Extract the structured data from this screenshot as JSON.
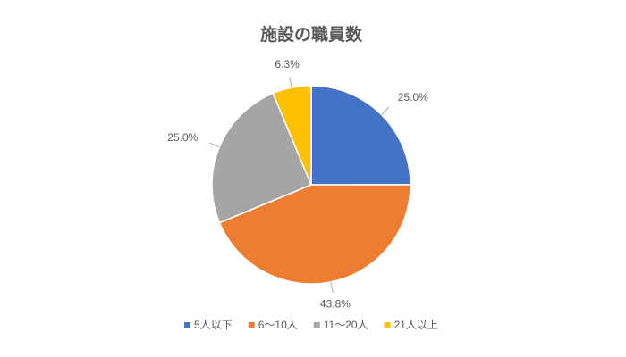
{
  "chart_data": {
    "type": "pie",
    "title": "施設の職員数",
    "categories": [
      "5人以下",
      "6〜10人",
      "11〜20人",
      "21人以上"
    ],
    "values": [
      25,
      43.8,
      25,
      6.3
    ],
    "value_labels": [
      "25.0%",
      "43.8%",
      "25.0%",
      "6.3%"
    ],
    "colors": [
      "#4472c4",
      "#ed7d31",
      "#a5a5a5",
      "#ffc000"
    ],
    "legend": "bottom"
  }
}
